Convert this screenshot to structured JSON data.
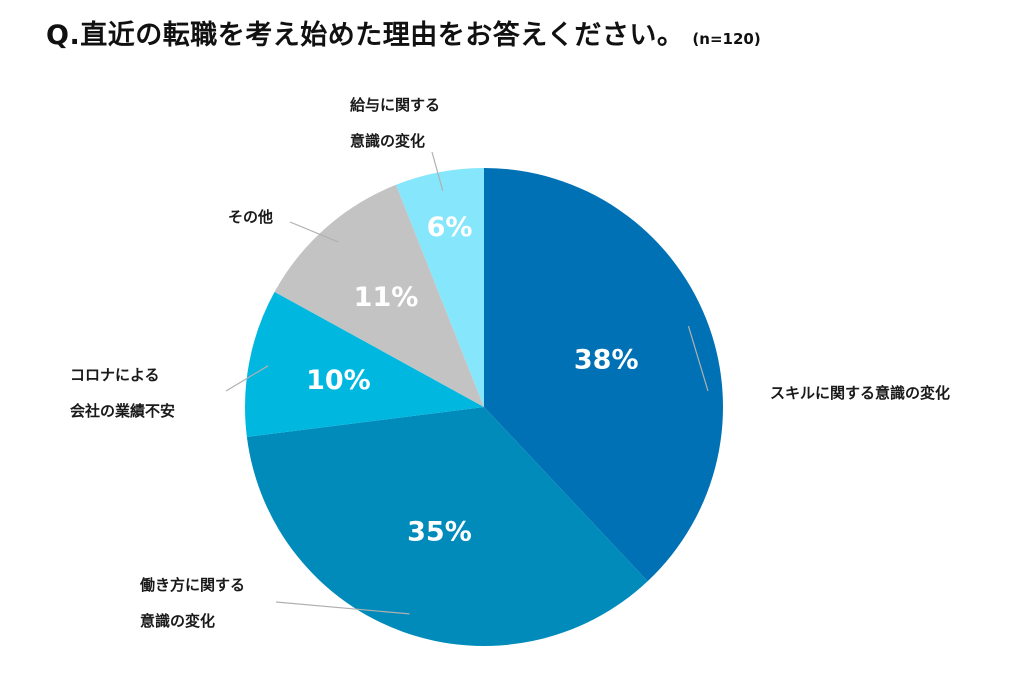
{
  "title": "Q.直近の転職を考え始めた理由をお答えください。",
  "sample_size": "(n=120)",
  "chart_data": {
    "type": "pie",
    "title": "Q.直近の転職を考え始めた理由をお答えください。",
    "subtitle": "(n=120)",
    "start": "12 o'clock, clockwise",
    "slices": [
      {
        "label": [
          "スキルに関する意識の変化"
        ],
        "value": 38,
        "value_label": "38%",
        "color": "#0071b5"
      },
      {
        "label": [
          "働き方に関する",
          "意識の変化"
        ],
        "value": 35,
        "value_label": "35%",
        "color": "#008bbb"
      },
      {
        "label": [
          "コロナによる",
          "会社の業績不安"
        ],
        "value": 10,
        "value_label": "10%",
        "color": "#00b8df"
      },
      {
        "label": [
          "その他"
        ],
        "value": 11,
        "value_label": "11%",
        "color": "#c3c3c3"
      },
      {
        "label": [
          "給与に関する",
          "意識の変化"
        ],
        "value": 6,
        "value_label": "6%",
        "color": "#86e6fb"
      }
    ]
  }
}
